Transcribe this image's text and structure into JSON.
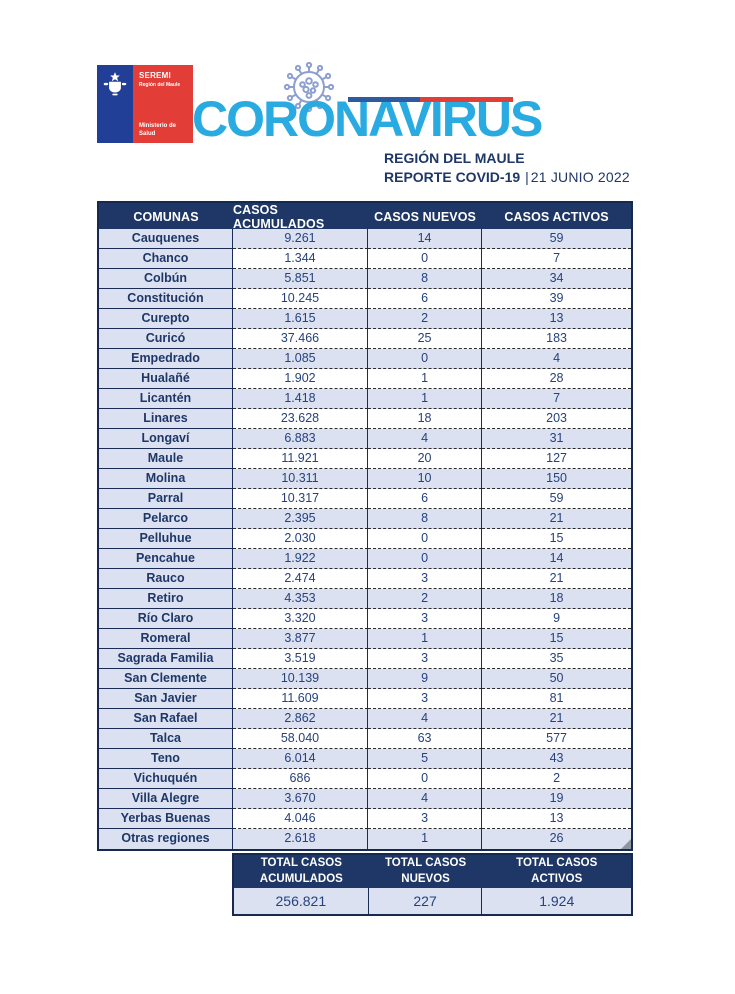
{
  "header": {
    "logo": {
      "seremi": "SEREMI",
      "region": "Región del Maule",
      "ministry": "Ministerio de Salud"
    },
    "brand": "CORONAVIRUS",
    "region_title": "REGIÓN DEL MAULE",
    "report_label": "REPORTE COVID-19",
    "report_separator": "|",
    "report_date": "21 JUNIO 2022"
  },
  "icons": {
    "virus": "virus-icon",
    "coat_of_arms": "coat-of-arms-icon"
  },
  "colors": {
    "navy": "#1e3766",
    "row_light_blue": "#dbe1f1",
    "brand_blue": "#29abe2",
    "brand_red": "#e23d37",
    "gov_blue": "#223f97",
    "gov_red": "#e23d37",
    "virus_icon_blue": "#8d9fd1",
    "number_text": "#26427c"
  },
  "table": {
    "columns": [
      "COMUNAS",
      "CASOS ACUMULADOS",
      "CASOS NUEVOS",
      "CASOS ACTIVOS"
    ],
    "rows": [
      [
        "Cauquenes",
        "9.261",
        "14",
        "59"
      ],
      [
        "Chanco",
        "1.344",
        "0",
        "7"
      ],
      [
        "Colbún",
        "5.851",
        "8",
        "34"
      ],
      [
        "Constitución",
        "10.245",
        "6",
        "39"
      ],
      [
        "Curepto",
        "1.615",
        "2",
        "13"
      ],
      [
        "Curicó",
        "37.466",
        "25",
        "183"
      ],
      [
        "Empedrado",
        "1.085",
        "0",
        "4"
      ],
      [
        "Hualañé",
        "1.902",
        "1",
        "28"
      ],
      [
        "Licantén",
        "1.418",
        "1",
        "7"
      ],
      [
        "Linares",
        "23.628",
        "18",
        "203"
      ],
      [
        "Longaví",
        "6.883",
        "4",
        "31"
      ],
      [
        "Maule",
        "11.921",
        "20",
        "127"
      ],
      [
        "Molina",
        "10.311",
        "10",
        "150"
      ],
      [
        "Parral",
        "10.317",
        "6",
        "59"
      ],
      [
        "Pelarco",
        "2.395",
        "8",
        "21"
      ],
      [
        "Pelluhue",
        "2.030",
        "0",
        "15"
      ],
      [
        "Pencahue",
        "1.922",
        "0",
        "14"
      ],
      [
        "Rauco",
        "2.474",
        "3",
        "21"
      ],
      [
        "Retiro",
        "4.353",
        "2",
        "18"
      ],
      [
        "Río Claro",
        "3.320",
        "3",
        "9"
      ],
      [
        "Romeral",
        "3.877",
        "1",
        "15"
      ],
      [
        "Sagrada Familia",
        "3.519",
        "3",
        "35"
      ],
      [
        "San Clemente",
        "10.139",
        "9",
        "50"
      ],
      [
        "San Javier",
        "11.609",
        "3",
        "81"
      ],
      [
        "San Rafael",
        "2.862",
        "4",
        "21"
      ],
      [
        "Talca",
        "58.040",
        "63",
        "577"
      ],
      [
        "Teno",
        "6.014",
        "5",
        "43"
      ],
      [
        "Vichuquén",
        "686",
        "0",
        "2"
      ],
      [
        "Villa Alegre",
        "3.670",
        "4",
        "19"
      ],
      [
        "Yerbas Buenas",
        "4.046",
        "3",
        "13"
      ],
      [
        "Otras regiones",
        "2.618",
        "1",
        "26"
      ]
    ],
    "totals": {
      "labels": [
        {
          "line1": "TOTAL CASOS",
          "line2": "ACUMULADOS"
        },
        {
          "line1": "TOTAL CASOS",
          "line2": "NUEVOS"
        },
        {
          "line1": "TOTAL CASOS",
          "line2": "ACTIVOS"
        }
      ],
      "values": [
        "256.821",
        "227",
        "1.924"
      ]
    }
  }
}
